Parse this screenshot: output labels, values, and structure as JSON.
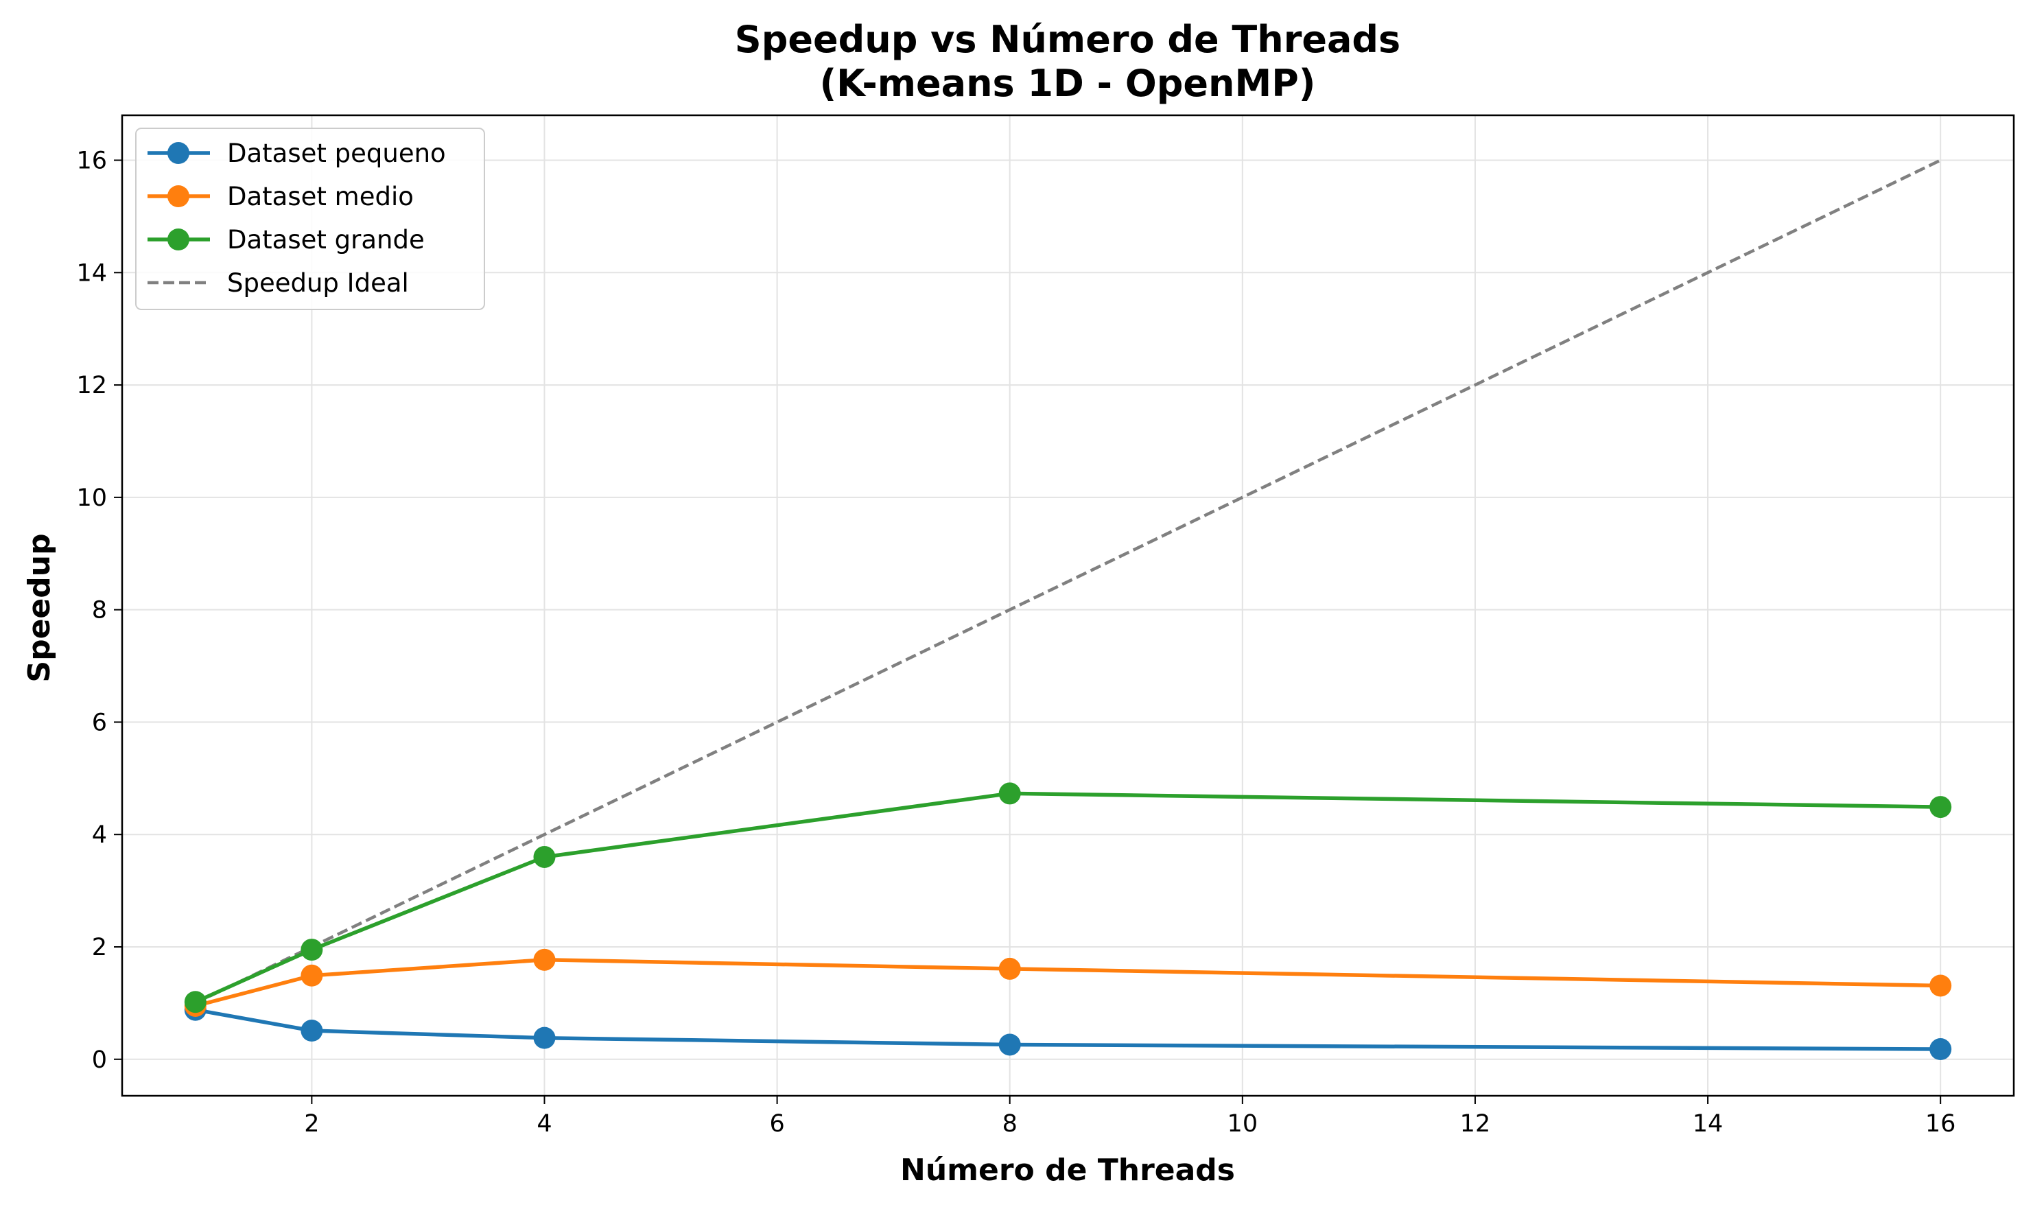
{
  "chart_data": {
    "type": "line",
    "title": "Speedup vs Número de Threads",
    "subtitle": "(K-means 1D - OpenMP)",
    "xlabel": "Número de Threads",
    "ylabel": "Speedup",
    "xlim": [
      0.37,
      16.63
    ],
    "ylim": [
      -0.65,
      16.8
    ],
    "xticks": [
      2,
      4,
      6,
      8,
      10,
      12,
      14,
      16
    ],
    "yticks": [
      0,
      2,
      4,
      6,
      8,
      10,
      12,
      14,
      16
    ],
    "grid": true,
    "legend_position": "top-left",
    "x": [
      1,
      2,
      4,
      8,
      16
    ],
    "series": [
      {
        "name": "Dataset pequeno",
        "color": "#1f77b4",
        "style": "solid",
        "marker": "circle",
        "values": [
          0.88,
          0.51,
          0.38,
          0.26,
          0.18
        ]
      },
      {
        "name": "Dataset medio",
        "color": "#ff7f0e",
        "style": "solid",
        "marker": "circle",
        "values": [
          0.95,
          1.49,
          1.77,
          1.61,
          1.31
        ]
      },
      {
        "name": "Dataset grande",
        "color": "#2ca02c",
        "style": "solid",
        "marker": "circle",
        "values": [
          1.02,
          1.95,
          3.6,
          4.73,
          4.49
        ]
      },
      {
        "name": "Speedup Ideal",
        "color": "#808080",
        "style": "dashed",
        "marker": "none",
        "values": [
          1,
          2,
          4,
          8,
          16
        ]
      }
    ]
  }
}
